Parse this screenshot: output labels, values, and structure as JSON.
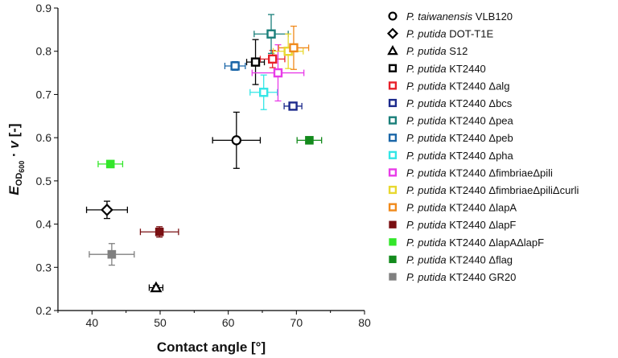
{
  "chart_data": {
    "type": "scatter",
    "title": "",
    "xlabel": "Contact angle [°]",
    "ylabel": {
      "main": "E",
      "sub_main": "OD",
      "sub_num": "600",
      "dot": "·",
      "var": "v",
      "unit": "[-]"
    },
    "xlim": [
      35,
      80
    ],
    "ylim": [
      0.2,
      0.9
    ],
    "xticks": [
      "40",
      "50",
      "60",
      "70",
      "80"
    ],
    "yticks": [
      "0.2",
      "0.3",
      "0.4",
      "0.5",
      "0.6",
      "0.7",
      "0.8",
      "0.9"
    ],
    "grid": false,
    "legend_position": "right",
    "series": [
      {
        "species": "P. taiwanensis",
        "strain": "VLB120",
        "marker": "circle",
        "color": "#000000",
        "x": 61.2,
        "y": 0.594,
        "xerr": 3.5,
        "yerr": 0.065
      },
      {
        "species": "P. putida",
        "strain": "DOT-T1E",
        "marker": "diamond",
        "color": "#000000",
        "x": 42.2,
        "y": 0.433,
        "xerr": 3.0,
        "yerr": 0.02
      },
      {
        "species": "P. putida",
        "strain": "S12",
        "marker": "triangle",
        "color": "#000000",
        "x": 49.4,
        "y": 0.253,
        "xerr": 1.0,
        "yerr": 0.005
      },
      {
        "species": "P. putida",
        "strain": "KT2440",
        "marker": "square-open",
        "color": "#000000",
        "x": 64.0,
        "y": 0.775,
        "xerr": 1.3,
        "yerr": 0.052
      },
      {
        "species": "P. putida",
        "strain": "KT2440 Δalg",
        "marker": "square-open",
        "color": "#e8202a",
        "x": 66.5,
        "y": 0.782,
        "xerr": 1.8,
        "yerr": 0.02
      },
      {
        "species": "P. putida",
        "strain": "KT2440 Δbcs",
        "marker": "square-open",
        "color": "#1c2a8c",
        "x": 69.5,
        "y": 0.673,
        "xerr": 1.3,
        "yerr": 0.005
      },
      {
        "species": "P. putida",
        "strain": "KT2440 Δpea",
        "marker": "square-open",
        "color": "#1a7f7a",
        "x": 66.3,
        "y": 0.84,
        "xerr": 2.5,
        "yerr": 0.045
      },
      {
        "species": "P. putida",
        "strain": "KT2440 Δpeb",
        "marker": "square-open",
        "color": "#1c67a8",
        "x": 61.0,
        "y": 0.766,
        "xerr": 1.5,
        "yerr": 0.01
      },
      {
        "species": "P. putida",
        "strain": "KT2440 Δpha",
        "marker": "square-open",
        "color": "#33e6e6",
        "x": 65.2,
        "y": 0.705,
        "xerr": 2.0,
        "yerr": 0.04
      },
      {
        "species": "P. putida",
        "strain": "KT2440 ΔfimbriaeΔpili",
        "marker": "square-open",
        "color": "#e83ce8",
        "x": 67.3,
        "y": 0.75,
        "xerr": 3.8,
        "yerr": 0.065
      },
      {
        "species": "P. putida",
        "strain": "KT2440 ΔfimbriaeΔpiliΔcurli",
        "marker": "square-open",
        "color": "#e8d830",
        "x": 68.8,
        "y": 0.8,
        "xerr": 2.2,
        "yerr": 0.04
      },
      {
        "species": "P. putida",
        "strain": "KT2440 ΔlapA",
        "marker": "square-open",
        "color": "#f08a1c",
        "x": 69.6,
        "y": 0.808,
        "xerr": 2.2,
        "yerr": 0.05
      },
      {
        "species": "P. putida",
        "strain": "KT2440 ΔlapF",
        "marker": "square-filled",
        "color": "#7a0f12",
        "x": 49.9,
        "y": 0.382,
        "xerr": 2.8,
        "yerr": 0.012
      },
      {
        "species": "P. putida",
        "strain": "KT2440 ΔlapAΔlapF",
        "marker": "square-filled",
        "color": "#33e62a",
        "x": 42.7,
        "y": 0.539,
        "xerr": 1.8,
        "yerr": 0.005
      },
      {
        "species": "P. putida",
        "strain": "KT2440 Δflag",
        "marker": "square-filled",
        "color": "#138a1c",
        "x": 71.9,
        "y": 0.594,
        "xerr": 1.8,
        "yerr": 0.005
      },
      {
        "species": "P. putida",
        "strain": "KT2440 GR20",
        "marker": "square-filled",
        "color": "#808080",
        "x": 42.9,
        "y": 0.33,
        "xerr": 3.3,
        "yerr": 0.025
      }
    ]
  }
}
